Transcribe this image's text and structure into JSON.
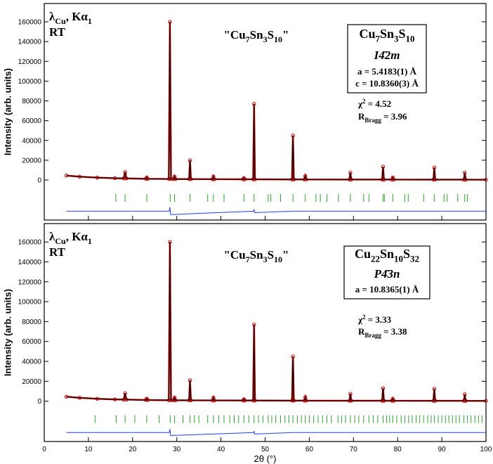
{
  "chart_data": [
    {
      "type": "line",
      "ylabel": "Intensity (arb. units)",
      "xlim": [
        0,
        100
      ],
      "ylim": [
        -40500,
        178500
      ],
      "xticks": [
        0,
        10,
        20,
        30,
        40,
        50,
        60,
        70,
        80,
        90,
        100
      ],
      "xtick_labels": false,
      "yticks": [
        0,
        20000,
        40000,
        60000,
        80000,
        100000,
        120000,
        140000,
        160000
      ],
      "series": [
        {
          "color": "#c00000",
          "marker": "circle",
          "x": [
            5,
            8,
            12,
            16,
            18.0,
            18.3,
            18.6,
            23.0,
            23.2,
            23.4,
            28.2,
            28.45,
            28.7,
            29.3,
            29.5,
            29.7,
            32.8,
            33.0,
            33.2,
            38.1,
            38.3,
            38.5,
            45.0,
            45.2,
            45.4,
            47.3,
            47.5,
            47.7,
            56.1,
            56.3,
            56.5,
            58.9,
            59.1,
            59.3,
            69.1,
            69.3,
            69.5,
            76.5,
            76.7,
            76.9,
            78.7,
            78.9,
            79.1,
            88.1,
            88.3,
            88.5,
            95.0,
            95.2,
            95.4,
            100
          ],
          "values": [
            4500,
            3400,
            2400,
            1800,
            1600,
            8000,
            1600,
            1200,
            2600,
            1200,
            1000,
            160000,
            1000,
            950,
            3500,
            950,
            900,
            20000,
            900,
            800,
            3500,
            800,
            700,
            2000,
            700,
            700,
            77000,
            700,
            600,
            45000,
            600,
            600,
            4000,
            600,
            500,
            7500,
            500,
            450,
            13500,
            450,
            450,
            2500,
            450,
            400,
            12500,
            400,
            350,
            7500,
            350,
            300
          ]
        },
        {
          "color": "#000000",
          "marker": "none",
          "x": [
            5,
            8,
            12,
            16,
            18.0,
            18.3,
            18.6,
            23.0,
            23.2,
            23.4,
            28.2,
            28.45,
            28.7,
            29.3,
            29.5,
            29.7,
            32.8,
            33.0,
            33.2,
            38.1,
            38.3,
            38.5,
            45.0,
            45.2,
            45.4,
            47.3,
            47.5,
            47.7,
            56.1,
            56.3,
            56.5,
            58.9,
            59.1,
            59.3,
            69.1,
            69.3,
            69.5,
            76.5,
            76.7,
            76.9,
            78.7,
            78.9,
            79.1,
            88.1,
            88.3,
            88.5,
            95.0,
            95.2,
            95.4,
            100
          ],
          "values": [
            4500,
            3400,
            2400,
            1800,
            1600,
            8000,
            1600,
            1200,
            2600,
            1200,
            1000,
            160000,
            1000,
            950,
            3500,
            950,
            900,
            20000,
            900,
            800,
            3500,
            800,
            700,
            2000,
            700,
            700,
            77000,
            700,
            600,
            45000,
            600,
            600,
            4000,
            600,
            500,
            7500,
            500,
            450,
            13500,
            450,
            450,
            2500,
            450,
            400,
            12500,
            400,
            350,
            7500,
            350,
            300
          ]
        },
        {
          "color": "#2040ff",
          "marker": "none",
          "x": [
            5,
            28.3,
            28.45,
            28.6,
            47.4,
            47.5,
            47.6,
            56.3,
            100
          ],
          "values": [
            -31500,
            -31500,
            -27500,
            -35000,
            -31500,
            -29500,
            -33000,
            -31500,
            -31500
          ]
        }
      ],
      "bragg_ticks": {
        "color": "#2ca02c",
        "positions": [
          16.2,
          18.3,
          23.2,
          28.5,
          29.5,
          33.0,
          37.0,
          38.3,
          40.7,
          45.2,
          47.5,
          50.7,
          51.3,
          53.5,
          56.3,
          59.1,
          61.5,
          62.5,
          64.0,
          66.6,
          69.3,
          72.3,
          73.5,
          76.7,
          77.0,
          78.9,
          81.6,
          82.4,
          85.9,
          88.3,
          90.5,
          91.2,
          93.6,
          95.2,
          95.8
        ]
      },
      "annotations": [
        {
          "runs": [
            "λ",
            "Cu",
            ", Kα",
            "1"
          ],
          "script": "sub"
        },
        {
          "runs": [
            "RT"
          ],
          "script": "sub"
        },
        {
          "runs": [
            "\"Cu",
            "7",
            "Sn",
            "3",
            "S",
            "10",
            "\""
          ],
          "script": "sub"
        },
        {
          "runs": [
            "Cu",
            "7",
            "Sn",
            "3",
            "S",
            "10"
          ],
          "script": "sub"
        },
        {
          "runs": [
            "I4̄2m"
          ],
          "script": "sub",
          "italic": true
        },
        {
          "runs": [
            "a = 5.4183(1) Å"
          ],
          "script": "sub"
        },
        {
          "runs": [
            "c = 10.8360(3) Å"
          ],
          "script": "sub"
        },
        {
          "runs": [
            "χ",
            "2",
            " = 4.52"
          ],
          "script": "sup"
        },
        {
          "runs": [
            "R",
            "Bragg",
            " = 3.96"
          ],
          "script": "sub"
        }
      ]
    },
    {
      "type": "line",
      "xlabel": "2θ (°)",
      "ylabel": "Intensity (arb. units)",
      "xlim": [
        0,
        100
      ],
      "ylim": [
        -40500,
        178500
      ],
      "xticks": [
        0,
        10,
        20,
        30,
        40,
        50,
        60,
        70,
        80,
        90,
        100
      ],
      "xtick_labels": true,
      "yticks": [
        0,
        20000,
        40000,
        60000,
        80000,
        100000,
        120000,
        140000,
        160000
      ],
      "series": [
        {
          "color": "#c00000",
          "marker": "circle",
          "x": [
            5,
            8,
            12,
            16,
            18.0,
            18.3,
            18.6,
            23.0,
            23.2,
            23.4,
            28.2,
            28.45,
            28.7,
            29.3,
            29.5,
            29.7,
            32.8,
            33.0,
            33.2,
            38.1,
            38.3,
            38.5,
            45.0,
            45.2,
            45.4,
            47.3,
            47.5,
            47.7,
            56.1,
            56.3,
            56.5,
            58.9,
            59.1,
            59.3,
            69.1,
            69.3,
            69.5,
            76.5,
            76.7,
            76.9,
            78.7,
            78.9,
            79.1,
            88.1,
            88.3,
            88.5,
            95.0,
            95.2,
            95.4,
            100
          ],
          "values": [
            4500,
            3400,
            2400,
            1800,
            1600,
            8000,
            1600,
            1200,
            2600,
            1200,
            1000,
            160000,
            1000,
            950,
            3500,
            950,
            900,
            21000,
            900,
            800,
            3500,
            800,
            700,
            2000,
            700,
            700,
            77000,
            700,
            600,
            45000,
            600,
            600,
            4000,
            600,
            500,
            7500,
            500,
            450,
            13000,
            450,
            450,
            2500,
            450,
            400,
            12500,
            400,
            350,
            7000,
            350,
            300
          ]
        },
        {
          "color": "#000000",
          "marker": "none",
          "x": [
            5,
            8,
            12,
            16,
            18.0,
            18.3,
            18.6,
            23.0,
            23.2,
            23.4,
            28.2,
            28.45,
            28.7,
            29.3,
            29.5,
            29.7,
            32.8,
            33.0,
            33.2,
            38.1,
            38.3,
            38.5,
            45.0,
            45.2,
            45.4,
            47.3,
            47.5,
            47.7,
            56.1,
            56.3,
            56.5,
            58.9,
            59.1,
            59.3,
            69.1,
            69.3,
            69.5,
            76.5,
            76.7,
            76.9,
            78.7,
            78.9,
            79.1,
            88.1,
            88.3,
            88.5,
            95.0,
            95.2,
            95.4,
            100
          ],
          "values": [
            4500,
            3400,
            2400,
            1800,
            1600,
            8000,
            1600,
            1200,
            2600,
            1200,
            1000,
            160000,
            1000,
            950,
            3500,
            950,
            900,
            21000,
            900,
            800,
            3500,
            800,
            700,
            2000,
            700,
            700,
            77000,
            700,
            600,
            45000,
            600,
            600,
            4000,
            600,
            500,
            7500,
            500,
            450,
            13000,
            450,
            450,
            2500,
            450,
            400,
            12500,
            400,
            350,
            7000,
            350,
            300
          ]
        },
        {
          "color": "#2040ff",
          "marker": "none",
          "x": [
            5,
            28.3,
            28.45,
            28.6,
            47.4,
            47.5,
            47.6,
            56.3,
            100
          ],
          "values": [
            -31500,
            -31500,
            -28000,
            -34500,
            -31500,
            -30000,
            -33000,
            -31500,
            -31500
          ]
        }
      ],
      "bragg_ticks": {
        "color": "#2ca02c",
        "positions": [
          11.5,
          16.3,
          18.3,
          20.5,
          23.2,
          26.0,
          28.5,
          29.5,
          31.4,
          33.0,
          34.0,
          35.0,
          37.0,
          38.3,
          39.5,
          40.7,
          42.0,
          43.0,
          44.0,
          45.2,
          46.3,
          47.5,
          48.5,
          49.5,
          50.7,
          51.5,
          52.4,
          53.5,
          54.5,
          55.4,
          56.3,
          57.3,
          58.2,
          59.1,
          60.0,
          61.0,
          62.0,
          63.0,
          64.0,
          65.0,
          66.5,
          67.3,
          68.2,
          69.3,
          70.3,
          71.2,
          72.3,
          73.5,
          74.5,
          75.5,
          76.7,
          77.5,
          78.2,
          78.9,
          79.8,
          80.8,
          81.6,
          82.5,
          83.3,
          84.2,
          85.0,
          85.9,
          86.8,
          87.6,
          88.3,
          89.2,
          90.0,
          90.8,
          91.6,
          92.4,
          93.2,
          94.0,
          95.0,
          95.8,
          96.6,
          97.5,
          98.3,
          99.1
        ]
      },
      "annotations": [
        {
          "runs": [
            "λ",
            "Cu",
            ", Kα",
            "1"
          ],
          "script": "sub"
        },
        {
          "runs": [
            "RT"
          ],
          "script": "sub"
        },
        {
          "runs": [
            "\"Cu",
            "7",
            "Sn",
            "3",
            "S",
            "10",
            "\""
          ],
          "script": "sub"
        },
        {
          "runs": [
            "Cu",
            "22",
            "Sn",
            "10",
            "S",
            "32"
          ],
          "script": "sub"
        },
        {
          "runs": [
            "P4̄3n"
          ],
          "script": "sub",
          "italic": true
        },
        {
          "runs": [
            "a = 10.8365(1) Å"
          ],
          "script": "sub"
        },
        {
          "runs": [
            "χ",
            "2",
            " = 3.33"
          ],
          "script": "sup"
        },
        {
          "runs": [
            "R",
            "Bragg",
            " = 3.38"
          ],
          "script": "sub"
        }
      ]
    }
  ]
}
